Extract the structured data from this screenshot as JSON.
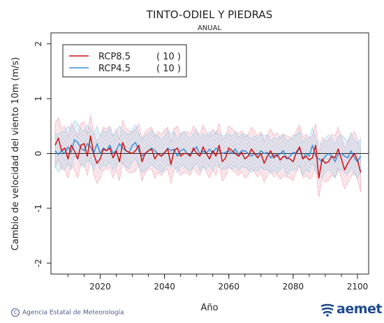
{
  "chart_data": {
    "type": "line",
    "title": "TINTO-ODIEL Y PIEDRAS",
    "subtitle": "ANUAL",
    "xlabel": "Año",
    "ylabel": "Cambio de velocidad del viento 10m (m/s)",
    "xlim": [
      2006,
      2100
    ],
    "ylim": [
      -2.2,
      2.2
    ],
    "xticks": [
      2020,
      2040,
      2060,
      2080,
      2100
    ],
    "xminor_step": 5,
    "yticks": [
      -2,
      -1,
      0,
      1,
      2
    ],
    "reference_line": 0,
    "grid": false,
    "legend_position": "top-left",
    "series": [
      {
        "name": "RCP8.5",
        "count_label": "( 10 )",
        "color": "#cc1111",
        "band_color": "#f2a6b4",
        "x_start": 2006,
        "values": [
          0.15,
          0.28,
          0.05,
          0.1,
          -0.1,
          0.15,
          0.05,
          -0.1,
          0.15,
          0.18,
          -0.05,
          0.32,
          -0.02,
          -0.18,
          -0.1,
          0.08,
          0.05,
          0.1,
          -0.08,
          0.05,
          -0.15,
          0.2,
          0.05,
          0.02,
          0.0,
          0.05,
          0.15,
          -0.15,
          0.0,
          0.05,
          0.08,
          -0.1,
          0.0,
          -0.05,
          0.02,
          0.08,
          -0.2,
          0.05,
          0.1,
          -0.05,
          0.0,
          0.0,
          -0.05,
          0.1,
          0.0,
          -0.05,
          0.12,
          0.0,
          -0.1,
          0.05,
          -0.05,
          0.15,
          -0.15,
          -0.08,
          0.1,
          0.05,
          0.0,
          -0.05,
          0.02,
          -0.1,
          -0.05,
          0.08,
          0.0,
          -0.08,
          0.0,
          -0.18,
          -0.05,
          0.05,
          -0.08,
          -0.02,
          -0.12,
          -0.05,
          -0.08,
          -0.1,
          -0.15,
          0.02,
          0.12,
          -0.1,
          -0.05,
          -0.12,
          -0.08,
          0.15,
          -0.45,
          -0.1,
          -0.18,
          -0.15,
          -0.05,
          -0.08,
          0.08,
          -0.1,
          -0.3,
          -0.18,
          -0.08,
          0.0,
          -0.12,
          -0.35
        ],
        "band_low": [
          -0.25,
          -0.1,
          -0.3,
          -0.3,
          -0.45,
          -0.2,
          -0.3,
          -0.45,
          -0.2,
          -0.2,
          -0.4,
          -0.05,
          -0.4,
          -0.55,
          -0.45,
          -0.3,
          -0.3,
          -0.25,
          -0.45,
          -0.3,
          -0.5,
          -0.15,
          -0.3,
          -0.35,
          -0.35,
          -0.3,
          -0.2,
          -0.5,
          -0.35,
          -0.3,
          -0.28,
          -0.45,
          -0.35,
          -0.4,
          -0.33,
          -0.28,
          -0.55,
          -0.3,
          -0.25,
          -0.4,
          -0.35,
          -0.35,
          -0.4,
          -0.25,
          -0.35,
          -0.4,
          -0.23,
          -0.35,
          -0.45,
          -0.3,
          -0.4,
          -0.2,
          -0.5,
          -0.43,
          -0.25,
          -0.3,
          -0.35,
          -0.4,
          -0.33,
          -0.45,
          -0.4,
          -0.27,
          -0.35,
          -0.43,
          -0.35,
          -0.53,
          -0.4,
          -0.3,
          -0.43,
          -0.37,
          -0.47,
          -0.4,
          -0.43,
          -0.45,
          -0.5,
          -0.33,
          -0.23,
          -0.45,
          -0.4,
          -0.47,
          -0.43,
          -0.2,
          -0.8,
          -0.45,
          -0.53,
          -0.5,
          -0.4,
          -0.43,
          -0.27,
          -0.45,
          -0.65,
          -0.53,
          -0.43,
          -0.35,
          -0.47,
          -0.7
        ],
        "band_high": [
          0.55,
          0.65,
          0.45,
          0.5,
          0.3,
          0.55,
          0.45,
          0.3,
          0.55,
          0.58,
          0.35,
          0.7,
          0.38,
          0.22,
          0.3,
          0.48,
          0.45,
          0.5,
          0.32,
          0.45,
          0.25,
          0.6,
          0.45,
          0.42,
          0.4,
          0.45,
          0.55,
          0.25,
          0.4,
          0.45,
          0.48,
          0.3,
          0.4,
          0.35,
          0.42,
          0.48,
          0.2,
          0.45,
          0.5,
          0.35,
          0.4,
          0.4,
          0.35,
          0.5,
          0.4,
          0.35,
          0.52,
          0.4,
          0.3,
          0.45,
          0.35,
          0.55,
          0.25,
          0.32,
          0.5,
          0.45,
          0.4,
          0.35,
          0.42,
          0.3,
          0.35,
          0.48,
          0.4,
          0.32,
          0.4,
          0.22,
          0.35,
          0.45,
          0.32,
          0.38,
          0.28,
          0.35,
          0.32,
          0.3,
          0.25,
          0.42,
          0.52,
          0.3,
          0.35,
          0.28,
          0.32,
          0.55,
          -0.05,
          0.3,
          0.22,
          0.25,
          0.35,
          0.32,
          0.48,
          0.3,
          0.1,
          0.22,
          0.32,
          0.4,
          0.28,
          0.05
        ]
      },
      {
        "name": "RCP4.5",
        "count_label": "( 10 )",
        "color": "#3a8fd8",
        "band_color": "#9fd0ea",
        "x_start": 2006,
        "values": [
          0.05,
          -0.02,
          0.05,
          0.0,
          0.12,
          0.02,
          0.25,
          0.2,
          0.1,
          0.05,
          0.18,
          0.12,
          0.0,
          0.18,
          0.0,
          0.1,
          0.05,
          0.15,
          0.0,
          0.05,
          0.18,
          0.1,
          0.05,
          0.02,
          0.15,
          0.2,
          0.05,
          -0.05,
          0.0,
          0.05,
          0.1,
          0.05,
          0.0,
          -0.05,
          0.0,
          0.1,
          0.05,
          0.08,
          -0.05,
          0.05,
          0.08,
          0.0,
          -0.02,
          0.05,
          0.12,
          -0.02,
          0.05,
          0.0,
          0.08,
          0.0,
          0.1,
          0.05,
          0.0,
          0.02,
          0.05,
          0.0,
          0.08,
          -0.02,
          0.05,
          0.05,
          0.0,
          -0.05,
          0.0,
          -0.02,
          0.05,
          0.0,
          0.02,
          -0.08,
          -0.02,
          -0.05,
          0.0,
          0.05,
          -0.1,
          -0.05,
          0.02,
          0.0,
          0.1,
          -0.1,
          0.0,
          -0.05,
          0.15,
          -0.05,
          -0.1,
          -0.15,
          -0.05,
          0.0,
          -0.05,
          -0.15,
          -0.02,
          0.0,
          -0.05,
          -0.08,
          0.05,
          -0.08,
          -0.15,
          -0.05
        ],
        "band_low": [
          -0.25,
          -0.35,
          -0.25,
          -0.3,
          -0.18,
          -0.3,
          -0.05,
          -0.1,
          -0.2,
          -0.25,
          -0.12,
          -0.18,
          -0.3,
          -0.12,
          -0.3,
          -0.2,
          -0.25,
          -0.15,
          -0.3,
          -0.25,
          -0.12,
          -0.2,
          -0.25,
          -0.28,
          -0.15,
          -0.1,
          -0.25,
          -0.35,
          -0.3,
          -0.25,
          -0.2,
          -0.25,
          -0.3,
          -0.35,
          -0.3,
          -0.2,
          -0.25,
          -0.22,
          -0.35,
          -0.25,
          -0.22,
          -0.3,
          -0.32,
          -0.25,
          -0.18,
          -0.32,
          -0.25,
          -0.3,
          -0.22,
          -0.3,
          -0.2,
          -0.25,
          -0.3,
          -0.28,
          -0.25,
          -0.3,
          -0.22,
          -0.32,
          -0.25,
          -0.25,
          -0.3,
          -0.35,
          -0.3,
          -0.32,
          -0.25,
          -0.3,
          -0.28,
          -0.38,
          -0.32,
          -0.35,
          -0.3,
          -0.25,
          -0.4,
          -0.35,
          -0.28,
          -0.3,
          -0.2,
          -0.4,
          -0.3,
          -0.35,
          -0.15,
          -0.35,
          -0.4,
          -0.45,
          -0.35,
          -0.3,
          -0.35,
          -0.45,
          -0.32,
          -0.3,
          -0.35,
          -0.38,
          -0.25,
          -0.38,
          -0.45,
          -0.35
        ],
        "band_high": [
          0.35,
          0.35,
          0.4,
          0.4,
          0.5,
          0.45,
          0.6,
          0.55,
          0.45,
          0.4,
          0.52,
          0.45,
          0.35,
          0.5,
          0.32,
          0.42,
          0.38,
          0.48,
          0.32,
          0.38,
          0.5,
          0.42,
          0.38,
          0.34,
          0.46,
          0.52,
          0.36,
          0.26,
          0.32,
          0.36,
          0.42,
          0.36,
          0.32,
          0.26,
          0.32,
          0.42,
          0.36,
          0.4,
          0.26,
          0.36,
          0.4,
          0.32,
          0.28,
          0.36,
          0.44,
          0.28,
          0.36,
          0.32,
          0.4,
          0.32,
          0.42,
          0.36,
          0.32,
          0.34,
          0.36,
          0.32,
          0.4,
          0.28,
          0.36,
          0.36,
          0.32,
          0.26,
          0.32,
          0.28,
          0.36,
          0.32,
          0.34,
          0.24,
          0.28,
          0.26,
          0.32,
          0.36,
          0.22,
          0.26,
          0.34,
          0.32,
          0.42,
          0.2,
          0.3,
          0.26,
          0.48,
          0.26,
          0.22,
          0.16,
          0.28,
          0.34,
          0.28,
          0.18,
          0.3,
          0.34,
          0.28,
          0.24,
          0.38,
          0.26,
          0.18,
          0.28
        ]
      }
    ]
  },
  "footer": {
    "credit": "Agencia Estatal de Meteorología",
    "copyright_symbol": "C",
    "logo_text": "aemet"
  }
}
